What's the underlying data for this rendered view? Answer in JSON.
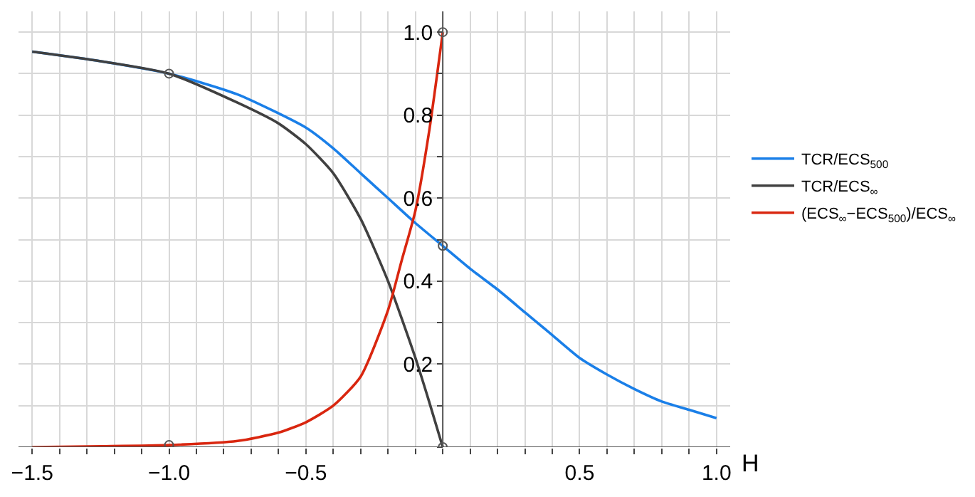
{
  "chart_data": {
    "type": "line",
    "xlabel": "H",
    "xlim": [
      -1.55,
      1.05
    ],
    "ylim": [
      0,
      1.05
    ],
    "xticks": [
      {
        "value": -1.5,
        "label": "−1.5"
      },
      {
        "value": -1.4,
        "label": null
      },
      {
        "value": -1.3,
        "label": null
      },
      {
        "value": -1.2,
        "label": null
      },
      {
        "value": -1.1,
        "label": null
      },
      {
        "value": -1.0,
        "label": "−1.0"
      },
      {
        "value": -0.9,
        "label": null
      },
      {
        "value": -0.8,
        "label": null
      },
      {
        "value": -0.7,
        "label": null
      },
      {
        "value": -0.6,
        "label": null
      },
      {
        "value": -0.5,
        "label": "−0.5"
      },
      {
        "value": -0.4,
        "label": null
      },
      {
        "value": -0.3,
        "label": null
      },
      {
        "value": -0.2,
        "label": null
      },
      {
        "value": -0.1,
        "label": null
      },
      {
        "value": 0,
        "label": null
      },
      {
        "value": 0.1,
        "label": null
      },
      {
        "value": 0.2,
        "label": null
      },
      {
        "value": 0.3,
        "label": null
      },
      {
        "value": 0.4,
        "label": null
      },
      {
        "value": 0.5,
        "label": "0.5"
      },
      {
        "value": 0.6,
        "label": null
      },
      {
        "value": 0.7,
        "label": null
      },
      {
        "value": 0.8,
        "label": null
      },
      {
        "value": 0.9,
        "label": null
      },
      {
        "value": 1.0,
        "label": "1.0"
      }
    ],
    "yticks": [
      {
        "value": 0,
        "label": null
      },
      {
        "value": 0.1,
        "label": null
      },
      0.2,
      {
        "value": 0.3,
        "label": null
      },
      0.4,
      {
        "value": 0.5,
        "label": null
      },
      0.6,
      {
        "value": 0.7,
        "label": null
      },
      0.8,
      {
        "value": 0.9,
        "label": null
      },
      {
        "value": 1.0,
        "label": "1.0"
      }
    ],
    "grid": true,
    "legend": "right",
    "line_style": "solid",
    "series": [
      {
        "name": "TCR/ECS$_{500}$",
        "color": "#1a7fe8",
        "x": [
          -1.5,
          -1.25,
          -1.0,
          -0.75,
          -0.5,
          -0.4,
          -0.3,
          -0.2,
          -0.1,
          0,
          0.1,
          0.2,
          0.3,
          0.4,
          0.5,
          0.6,
          0.7,
          0.8,
          0.9,
          1.0
        ],
        "values": [
          0.953,
          0.93,
          0.9,
          0.85,
          0.77,
          0.72,
          0.66,
          0.6,
          0.54,
          0.485,
          0.43,
          0.38,
          0.325,
          0.27,
          0.215,
          0.175,
          0.14,
          0.11,
          0.09,
          0.07
        ]
      },
      {
        "name": "TCR/ECS$_{∞}$",
        "color": "#404040",
        "x": [
          -1.5,
          -1.25,
          -1.0,
          -0.75,
          -0.6,
          -0.5,
          -0.4,
          -0.3,
          -0.2,
          -0.1,
          -0.05,
          0
        ],
        "values": [
          0.953,
          0.93,
          0.9,
          0.83,
          0.78,
          0.73,
          0.66,
          0.55,
          0.4,
          0.215,
          0.11,
          0
        ]
      },
      {
        "name": "(ECS$_{∞}$−ECS$_{500}$)/ECS$_{∞}$",
        "color": "#d9260f",
        "x": [
          -1.5,
          -1.25,
          -1.0,
          -0.75,
          -0.6,
          -0.5,
          -0.4,
          -0.3,
          -0.2,
          -0.15,
          -0.1,
          -0.05,
          0
        ],
        "values": [
          0.0,
          0.002,
          0.005,
          0.015,
          0.035,
          0.06,
          0.1,
          0.17,
          0.33,
          0.45,
          0.57,
          0.76,
          1.0
        ]
      },
      {
        "type": "scatter",
        "marker": "circle",
        "color": "#555555",
        "x": [
          -1.0,
          -1.0,
          0,
          0,
          0
        ],
        "values": [
          0.9,
          0.005,
          1.0,
          0.485,
          0
        ]
      }
    ]
  }
}
